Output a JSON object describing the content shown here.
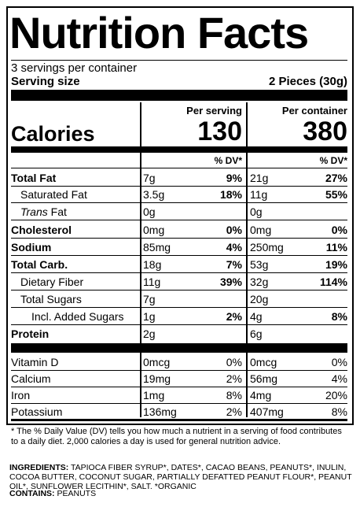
{
  "title": "Nutrition Facts",
  "servings_per_container": "3 servings per container",
  "serving_size_label": "Serving size",
  "serving_size_value": "2 Pieces (30g)",
  "per_serving_label": "Per serving",
  "per_container_label": "Per container",
  "calories_label": "Calories",
  "calories_per_serving": "130",
  "calories_per_container": "380",
  "dv_header": "% DV*",
  "nutrients": [
    {
      "name": "Total Fat",
      "serving_amount": "7g",
      "serving_dv": "9%",
      "container_amount": "21g",
      "container_dv": "27%"
    },
    {
      "name": "Saturated Fat",
      "serving_amount": "3.5g",
      "serving_dv": "18%",
      "container_amount": "11g",
      "container_dv": "55%"
    },
    {
      "name_italic": "Trans",
      "name_rest": " Fat",
      "serving_amount": "0g",
      "serving_dv": "",
      "container_amount": "0g",
      "container_dv": ""
    },
    {
      "name": "Cholesterol",
      "serving_amount": "0mg",
      "serving_dv": "0%",
      "container_amount": "0mg",
      "container_dv": "0%"
    },
    {
      "name": "Sodium",
      "serving_amount": "85mg",
      "serving_dv": "4%",
      "container_amount": "250mg",
      "container_dv": "11%"
    },
    {
      "name": "Total Carb.",
      "serving_amount": "18g",
      "serving_dv": "7%",
      "container_amount": "53g",
      "container_dv": "19%"
    },
    {
      "name": "Dietary Fiber",
      "serving_amount": "11g",
      "serving_dv": "39%",
      "container_amount": "32g",
      "container_dv": "114%"
    },
    {
      "name": "Total Sugars",
      "serving_amount": "7g",
      "serving_dv": "",
      "container_amount": "20g",
      "container_dv": ""
    },
    {
      "name": "Incl. Added Sugars",
      "serving_amount": "1g",
      "serving_dv": "2%",
      "container_amount": "4g",
      "container_dv": "8%"
    },
    {
      "name": "Protein",
      "serving_amount": "2g",
      "serving_dv": "",
      "container_amount": "6g",
      "container_dv": ""
    }
  ],
  "vitamins": [
    {
      "name": "Vitamin D",
      "serving_amount": "0mcg",
      "serving_dv": "0%",
      "container_amount": "0mcg",
      "container_dv": "0%"
    },
    {
      "name": "Calcium",
      "serving_amount": "19mg",
      "serving_dv": "2%",
      "container_amount": "56mg",
      "container_dv": "4%"
    },
    {
      "name": "Iron",
      "serving_amount": "1mg",
      "serving_dv": "8%",
      "container_amount": "4mg",
      "container_dv": "20%"
    },
    {
      "name": "Potassium",
      "serving_amount": "136mg",
      "serving_dv": "2%",
      "container_amount": "407mg",
      "container_dv": "8%"
    }
  ],
  "footnote": "* The % Daily Value (DV) tells you how much a nutrient in a serving of food contributes to a daily diet. 2,000 calories a day is used for general nutrition advice.",
  "ingredients_label": "INGREDIENTS:",
  "ingredients_text": " TAPIOCA FIBER SYRUP*, DATES*, CACAO BEANS, PEANUTS*, INULIN, COCOA BUTTER, COCONUT SUGAR, PARTIALLY DEFATTED PEANUT FLOUR*, PEANUT OIL*, SUNFLOWER LECITHIN*, SALT. *ORGANIC",
  "contains_label": "CONTAINS:",
  "contains_text": " PEANUTS"
}
